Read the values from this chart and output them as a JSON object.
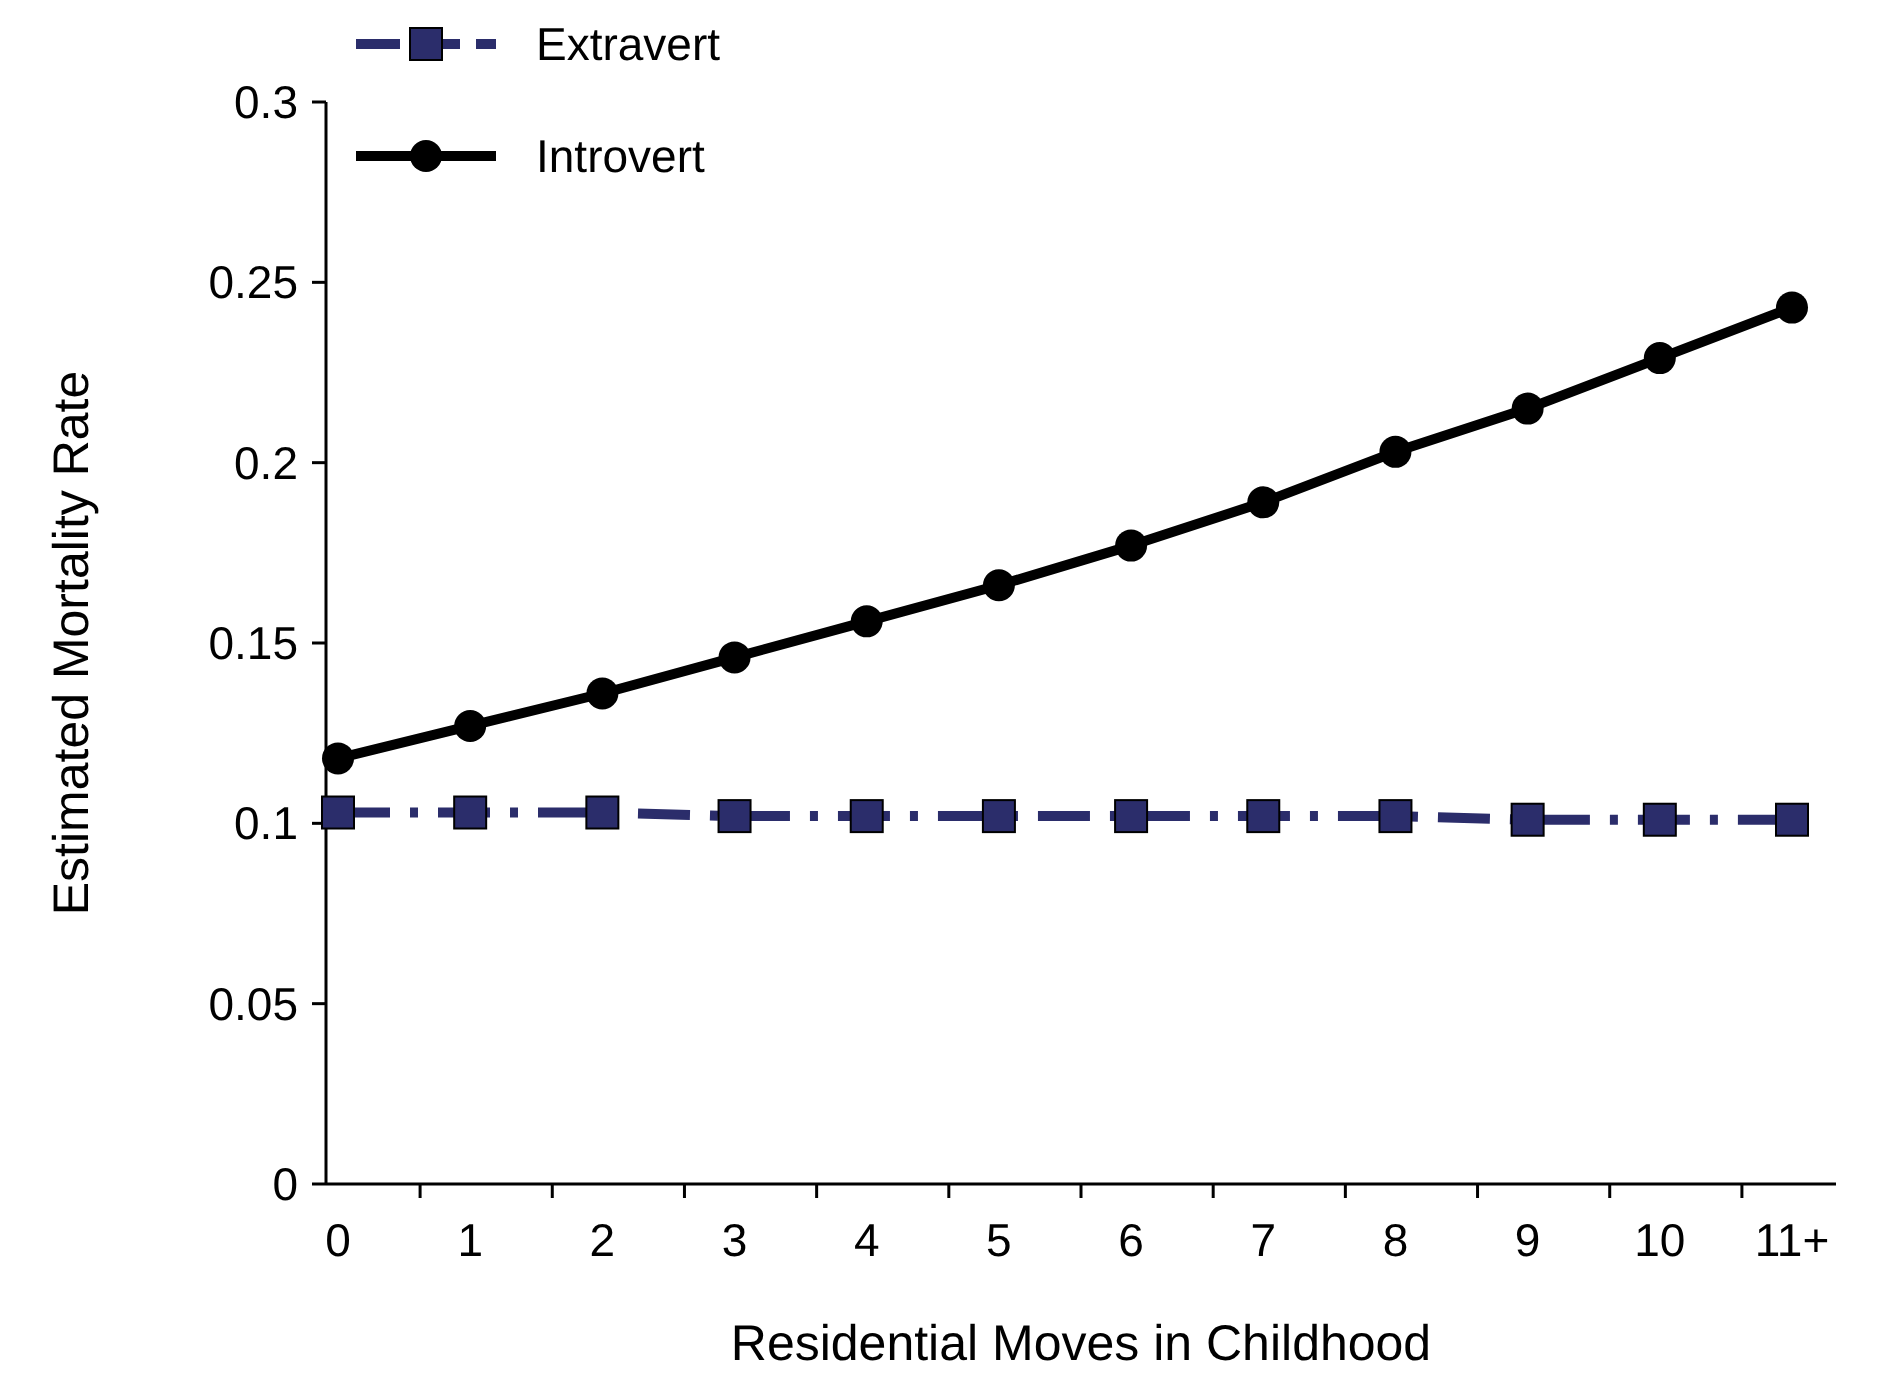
{
  "chart_data": {
    "type": "line",
    "xlabel": "Residential Moves in Childhood",
    "ylabel": "Estimated Mortality Rate",
    "categories": [
      "0",
      "1",
      "2",
      "3",
      "4",
      "5",
      "6",
      "7",
      "8",
      "9",
      "10",
      "11+"
    ],
    "ylim": [
      0,
      0.3
    ],
    "yticks": [
      0,
      0.05,
      0.1,
      0.15,
      0.2,
      0.25,
      0.3
    ],
    "grid": false,
    "legend": "top left",
    "series": [
      {
        "name": "Extravert",
        "color": "#2b2d6b",
        "marker": "square",
        "line_style": "dashed",
        "values": [
          0.103,
          0.103,
          0.103,
          0.102,
          0.102,
          0.102,
          0.102,
          0.102,
          0.102,
          0.101,
          0.101,
          0.101
        ]
      },
      {
        "name": "Introvert",
        "color": "#000000",
        "marker": "circle",
        "line_style": "solid",
        "values": [
          0.118,
          0.127,
          0.136,
          0.146,
          0.156,
          0.166,
          0.177,
          0.189,
          0.203,
          0.215,
          0.229,
          0.243
        ]
      }
    ]
  }
}
